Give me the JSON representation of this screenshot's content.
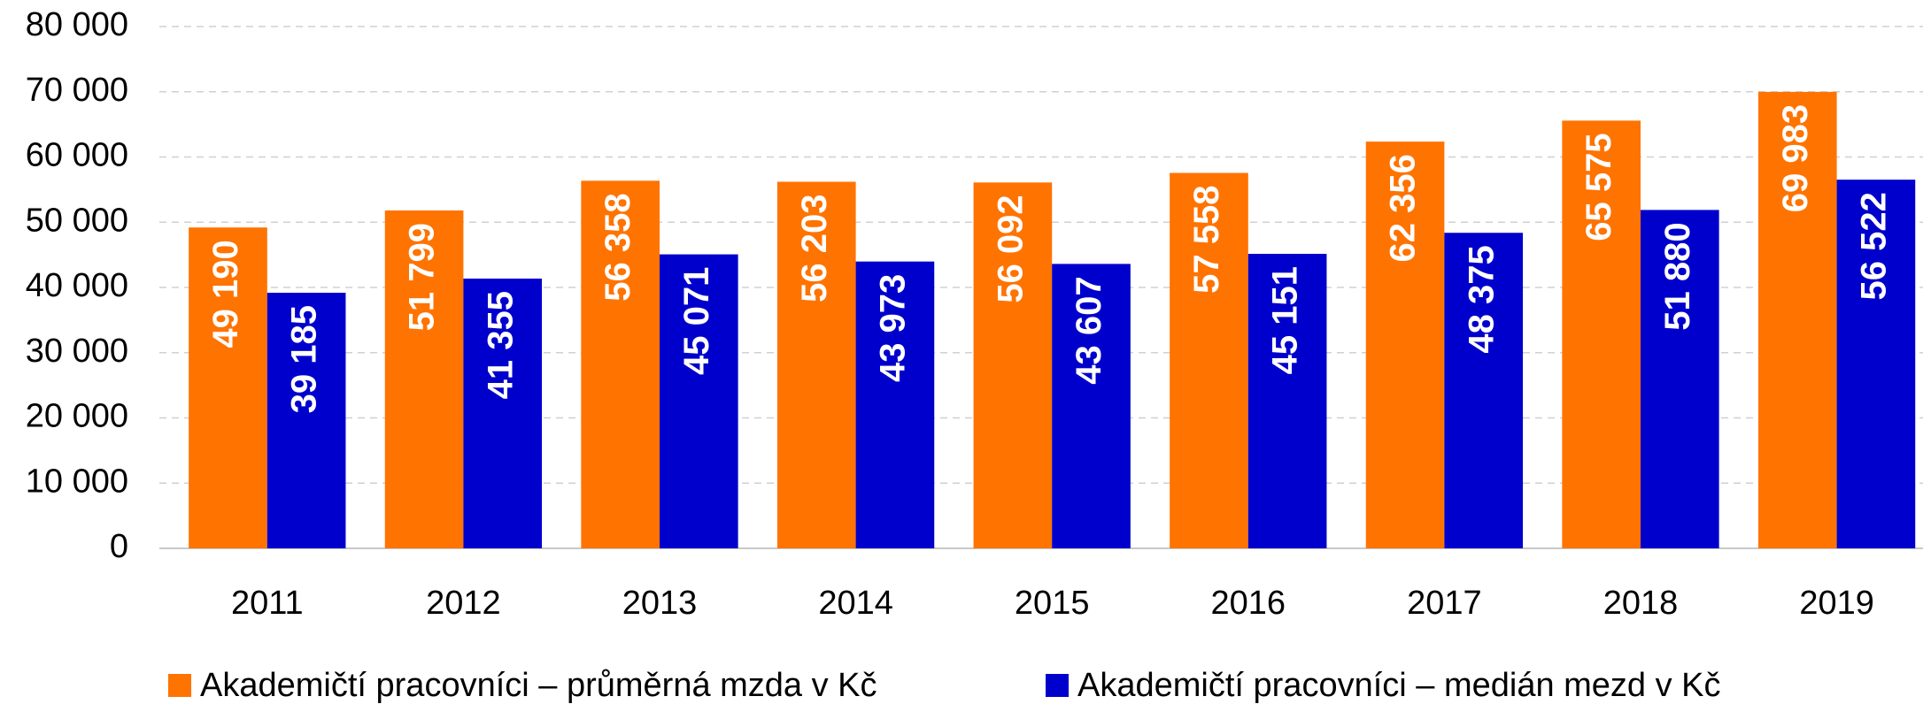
{
  "chart_data": {
    "type": "bar",
    "categories": [
      "2011",
      "2012",
      "2013",
      "2014",
      "2015",
      "2016",
      "2017",
      "2018",
      "2019"
    ],
    "series": [
      {
        "name": "Akademičtí pracovníci – průměrná mzda v Kč",
        "color": "#ff7300",
        "values": [
          49190,
          51799,
          56358,
          56203,
          56092,
          57558,
          62356,
          65575,
          69983
        ],
        "value_labels": [
          "49 190",
          "51 799",
          "56 358",
          "56 203",
          "56 092",
          "57 558",
          "62 356",
          "65 575",
          "69 983"
        ]
      },
      {
        "name": "Akademičtí pracovníci – medián mezd v Kč",
        "color": "#0000cc",
        "values": [
          39185,
          41355,
          45071,
          43973,
          43607,
          45151,
          48375,
          51880,
          56522
        ],
        "value_labels": [
          "39 185",
          "41 355",
          "45 071",
          "43 973",
          "43 607",
          "45 151",
          "48 375",
          "51 880",
          "56 522"
        ]
      }
    ],
    "ylim": [
      0,
      80000
    ],
    "yticks": [
      0,
      {
        "value": 10000,
        "label": "10 000"
      },
      {
        "value": 20000,
        "label": "20 000"
      },
      {
        "value": 30000,
        "label": "30 000"
      },
      {
        "value": 40000,
        "label": "40 000"
      },
      {
        "value": 50000,
        "label": "50 000"
      },
      {
        "value": 60000,
        "label": "60 000"
      },
      {
        "value": 70000,
        "label": "70 000"
      },
      {
        "value": 80000,
        "label": "80 000"
      }
    ],
    "grid": true
  }
}
